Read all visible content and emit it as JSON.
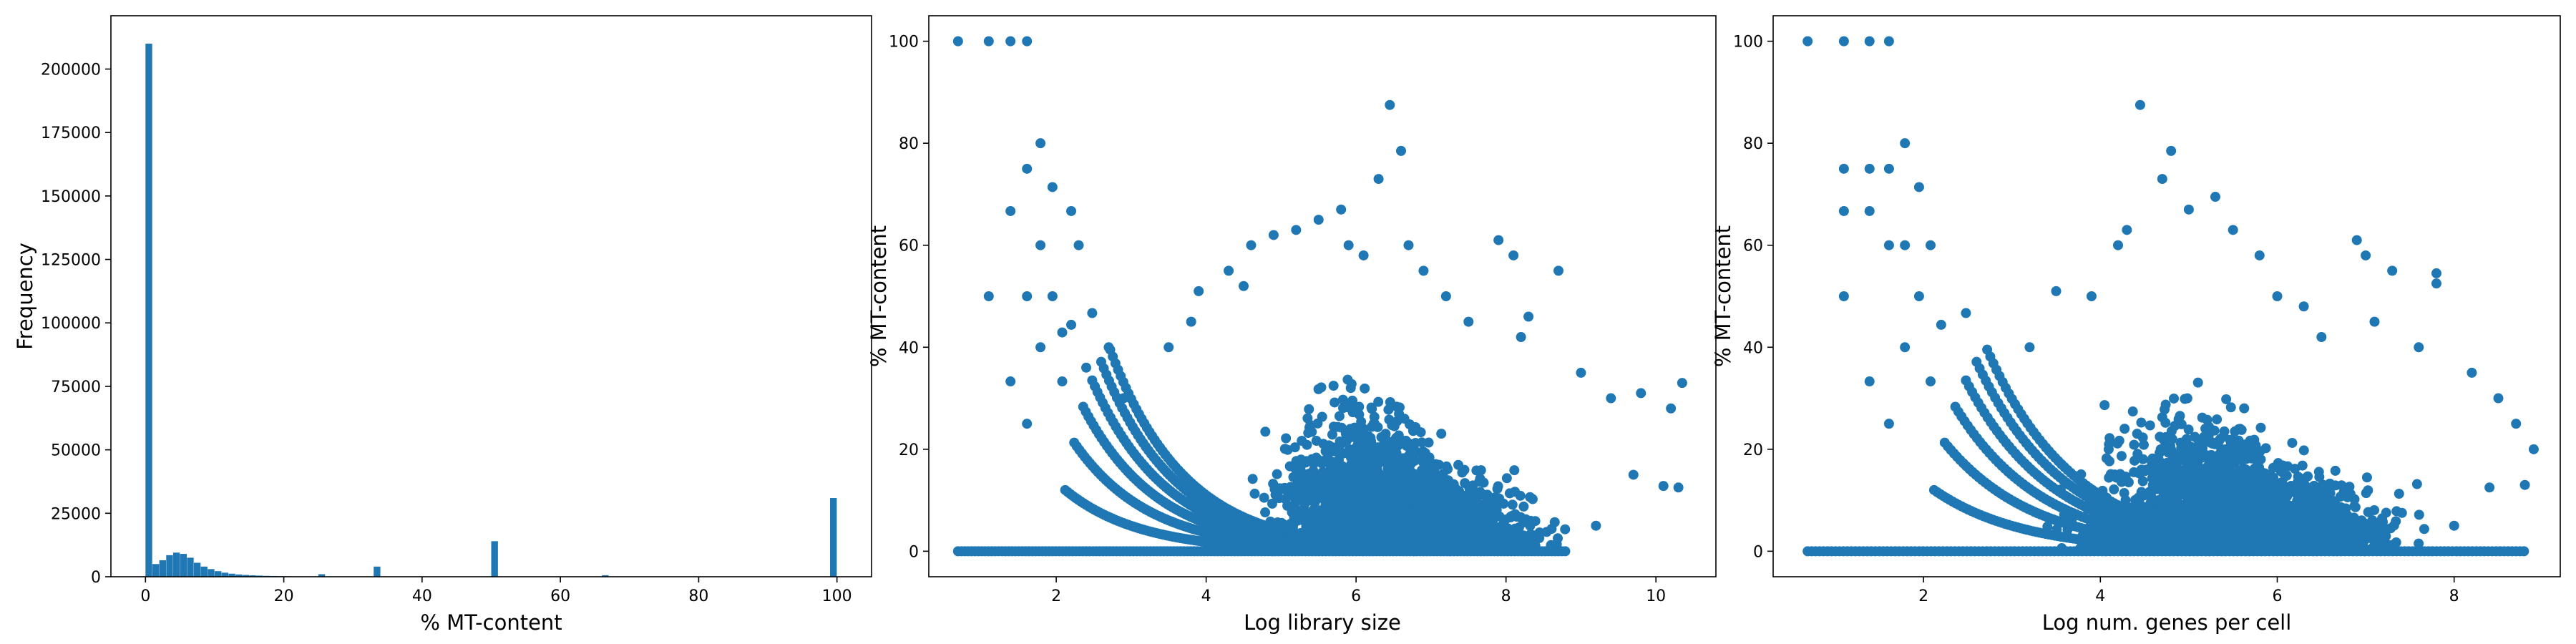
{
  "colors": {
    "series": "#1f77b4"
  },
  "chart_data": [
    {
      "type": "bar",
      "subtype": "histogram",
      "title": "",
      "xlabel": "% MT-content",
      "ylabel": "Frequency",
      "xlim": [
        -5,
        105
      ],
      "ylim": [
        0,
        221000
      ],
      "xticks": [
        0,
        20,
        40,
        60,
        80,
        100
      ],
      "yticks": [
        0,
        25000,
        50000,
        75000,
        100000,
        125000,
        150000,
        175000,
        200000
      ],
      "bin_width": 1,
      "bins": [
        {
          "x": 0,
          "count": 210000
        },
        {
          "x": 1,
          "count": 5000
        },
        {
          "x": 2,
          "count": 6500
        },
        {
          "x": 3,
          "count": 8500
        },
        {
          "x": 4,
          "count": 9500
        },
        {
          "x": 5,
          "count": 9000
        },
        {
          "x": 6,
          "count": 7500
        },
        {
          "x": 7,
          "count": 5500
        },
        {
          "x": 8,
          "count": 4000
        },
        {
          "x": 9,
          "count": 3000
        },
        {
          "x": 10,
          "count": 2200
        },
        {
          "x": 11,
          "count": 1600
        },
        {
          "x": 12,
          "count": 1200
        },
        {
          "x": 13,
          "count": 900
        },
        {
          "x": 14,
          "count": 700
        },
        {
          "x": 15,
          "count": 550
        },
        {
          "x": 16,
          "count": 450
        },
        {
          "x": 17,
          "count": 350
        },
        {
          "x": 18,
          "count": 300
        },
        {
          "x": 19,
          "count": 250
        },
        {
          "x": 20,
          "count": 200
        },
        {
          "x": 21,
          "count": 150
        },
        {
          "x": 22,
          "count": 150
        },
        {
          "x": 23,
          "count": 100
        },
        {
          "x": 24,
          "count": 100
        },
        {
          "x": 25,
          "count": 1000
        },
        {
          "x": 33,
          "count": 4000
        },
        {
          "x": 50,
          "count": 14000
        },
        {
          "x": 66,
          "count": 600
        },
        {
          "x": 99,
          "count": 31000
        }
      ],
      "grid": false,
      "legend": "none"
    },
    {
      "type": "scatter",
      "title": "",
      "xlabel": "Log library size",
      "ylabel": "% MT-content",
      "xlim": [
        0.3,
        10.8
      ],
      "ylim": [
        -5,
        105
      ],
      "xticks": [
        2,
        4,
        6,
        8,
        10
      ],
      "yticks": [
        0,
        20,
        40,
        60,
        80,
        100
      ],
      "points": [
        [
          0.69,
          100
        ],
        [
          1.1,
          100
        ],
        [
          1.39,
          100
        ],
        [
          1.61,
          100
        ],
        [
          1.1,
          50
        ],
        [
          1.39,
          66.7
        ],
        [
          1.61,
          75
        ],
        [
          1.79,
          80
        ],
        [
          1.95,
          71.4
        ],
        [
          1.61,
          50
        ],
        [
          1.79,
          60
        ],
        [
          1.95,
          50
        ],
        [
          2.08,
          42.9
        ],
        [
          2.2,
          66.7
        ],
        [
          2.3,
          60
        ],
        [
          1.39,
          33.3
        ],
        [
          1.61,
          25
        ],
        [
          1.79,
          40
        ],
        [
          2.08,
          33.3
        ],
        [
          2.2,
          44.4
        ],
        [
          2.48,
          46.7
        ],
        [
          2.4,
          36
        ],
        [
          2.7,
          40
        ],
        [
          2.9,
          30
        ],
        [
          3.5,
          40
        ],
        [
          3.8,
          45
        ],
        [
          3.9,
          51
        ],
        [
          4.3,
          55
        ],
        [
          4.5,
          52
        ],
        [
          4.6,
          60
        ],
        [
          4.9,
          62
        ],
        [
          5.2,
          63
        ],
        [
          5.5,
          65
        ],
        [
          5.8,
          67
        ],
        [
          5.9,
          60
        ],
        [
          6.1,
          58
        ],
        [
          6.3,
          73
        ],
        [
          6.45,
          87.5
        ],
        [
          6.6,
          78.5
        ],
        [
          6.7,
          60
        ],
        [
          6.9,
          55
        ],
        [
          7.2,
          50
        ],
        [
          7.5,
          45
        ],
        [
          7.9,
          61
        ],
        [
          8.1,
          58
        ],
        [
          8.3,
          46
        ],
        [
          8.7,
          55
        ],
        [
          8.2,
          42
        ],
        [
          9.0,
          35
        ],
        [
          9.4,
          30
        ],
        [
          9.8,
          31
        ],
        [
          10.2,
          28
        ],
        [
          10.35,
          33
        ],
        [
          10.3,
          12.5
        ],
        [
          10.1,
          12.8
        ],
        [
          8.6,
          1.2
        ],
        [
          9.2,
          5
        ],
        [
          9.7,
          15
        ]
      ],
      "series_detail": "dense cloud of cells spanning log library size ~3.5–10.3 with % MT-content mostly 0–30, plus curved low-count bands",
      "grid": false,
      "legend": "none"
    },
    {
      "type": "scatter",
      "title": "",
      "xlabel": "Log num. genes per cell",
      "ylabel": "% MT-content",
      "xlim": [
        0.3,
        9.2
      ],
      "ylim": [
        -5,
        105
      ],
      "xticks": [
        2,
        4,
        6,
        8
      ],
      "yticks": [
        0,
        20,
        40,
        60,
        80,
        100
      ],
      "points": [
        [
          0.69,
          100
        ],
        [
          1.1,
          100
        ],
        [
          1.39,
          100
        ],
        [
          1.61,
          100
        ],
        [
          1.1,
          50
        ],
        [
          1.1,
          66.7
        ],
        [
          1.1,
          75
        ],
        [
          1.39,
          75
        ],
        [
          1.39,
          66.7
        ],
        [
          1.61,
          75
        ],
        [
          1.79,
          80
        ],
        [
          1.95,
          71.4
        ],
        [
          1.61,
          60
        ],
        [
          1.79,
          60
        ],
        [
          1.95,
          50
        ],
        [
          2.08,
          60
        ],
        [
          1.39,
          33.3
        ],
        [
          1.61,
          25
        ],
        [
          1.79,
          40
        ],
        [
          2.08,
          33.3
        ],
        [
          2.2,
          44.4
        ],
        [
          2.48,
          46.7
        ],
        [
          3.2,
          40
        ],
        [
          3.5,
          51
        ],
        [
          3.9,
          50
        ],
        [
          4.2,
          60
        ],
        [
          4.3,
          63
        ],
        [
          4.45,
          87.5
        ],
        [
          4.7,
          73
        ],
        [
          4.8,
          78.5
        ],
        [
          5.0,
          67
        ],
        [
          5.3,
          69.5
        ],
        [
          5.5,
          63
        ],
        [
          5.8,
          58
        ],
        [
          6.0,
          50
        ],
        [
          6.3,
          48
        ],
        [
          6.9,
          61
        ],
        [
          7.0,
          58
        ],
        [
          7.3,
          55
        ],
        [
          7.8,
          54.5
        ],
        [
          7.8,
          52.5
        ],
        [
          7.1,
          45
        ],
        [
          7.6,
          40
        ],
        [
          8.2,
          35
        ],
        [
          8.5,
          30
        ],
        [
          8.7,
          25
        ],
        [
          8.9,
          20
        ],
        [
          8.8,
          13
        ],
        [
          8.4,
          12.5
        ],
        [
          7.3,
          1.2
        ],
        [
          8.0,
          5
        ],
        [
          6.5,
          42
        ]
      ],
      "series_detail": "dense cloud of cells spanning log num. genes ~3.0–8.9 with % MT-content mostly 0–30, plus curved low-count bands",
      "grid": false,
      "legend": "none"
    }
  ]
}
